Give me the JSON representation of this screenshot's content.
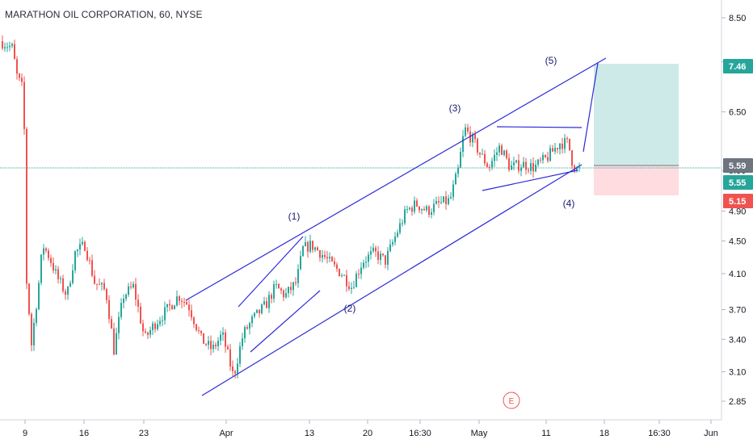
{
  "chart_data": {
    "type": "candlestick",
    "title": "MARATHON OIL CORPORATION, 60, NYSE",
    "y_axis": {
      "ticks": [
        "8.50",
        "7.50",
        "6.50",
        "5.50",
        "4.90",
        "4.50",
        "4.10",
        "3.70",
        "3.40",
        "3.10",
        "2.85"
      ],
      "scale": "log"
    },
    "x_axis": {
      "ticks": [
        "9",
        "16",
        "23",
        "Apr",
        "13",
        "20",
        "16:30",
        "May",
        "11",
        "18",
        "16:30",
        "Jun"
      ]
    },
    "price_tags": [
      {
        "label": "7.46",
        "value": 7.46,
        "color": "#26a69a"
      },
      {
        "label": "5.59",
        "value": 5.59,
        "color": "#6e7480"
      },
      {
        "label": "5.55",
        "value": 5.55,
        "color": "#26a69a"
      },
      {
        "label": "5.15",
        "value": 5.15,
        "color": "#ef5350"
      }
    ],
    "current_price_line": 5.55,
    "wave_labels": [
      {
        "label": "(1)",
        "value": 4.95
      },
      {
        "label": "(2)",
        "value": 3.6
      },
      {
        "label": "(3)",
        "value": 6.65
      },
      {
        "label": "(4)",
        "value": 4.95
      },
      {
        "label": "(5)",
        "value": 7.5
      }
    ],
    "position_tool": {
      "target": 7.46,
      "entry": 5.59,
      "stop": 5.15
    },
    "event_marker": "E",
    "colors": {
      "up": "#26a69a",
      "down": "#ef5350",
      "lines": "#2b2bd6",
      "profit_zone": "#b2dfdb",
      "loss_zone": "#ffcdd2"
    }
  }
}
